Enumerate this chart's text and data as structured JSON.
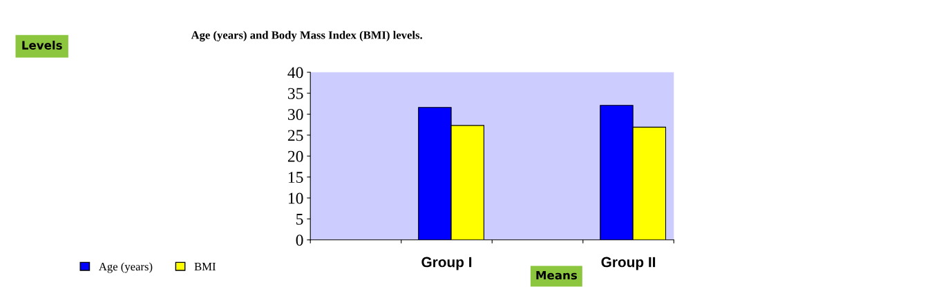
{
  "chart_data": {
    "type": "bar",
    "title": "Age (years) and Body Mass Index (BMI) levels.",
    "xlabel": "Means",
    "annotations": [
      "Levels"
    ],
    "categories": [
      null,
      "Group I",
      null,
      "Group II"
    ],
    "series": [
      {
        "name": "Age (years)",
        "color": "#0000ff",
        "values": [
          null,
          31.6,
          null,
          32.1
        ]
      },
      {
        "name": "BMI",
        "color": "#ffff00",
        "values": [
          null,
          27.3,
          null,
          26.9
        ]
      }
    ],
    "ylim": [
      0,
      40
    ],
    "yticks": [
      0,
      5,
      10,
      15,
      20,
      25,
      30,
      35,
      40
    ],
    "grid": false,
    "legend": "bottom left"
  }
}
